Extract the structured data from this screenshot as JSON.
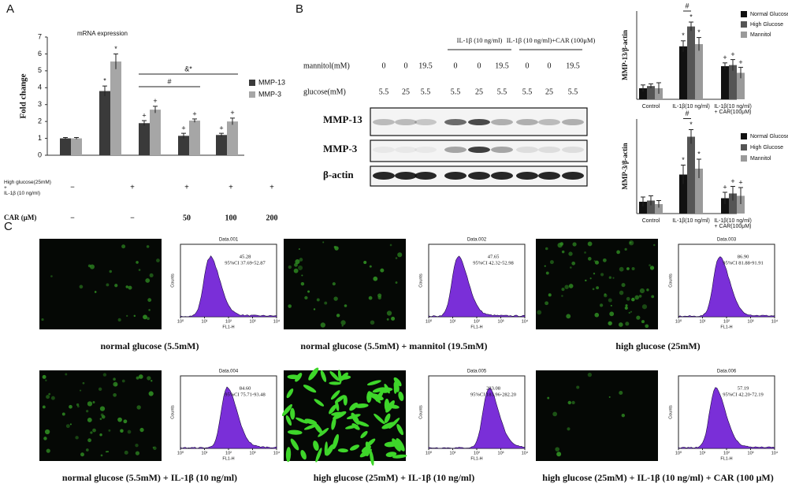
{
  "panel_labels": [
    "A",
    "B",
    "C"
  ],
  "chart_data": [
    {
      "type": "bar",
      "title": "mRNA expression",
      "ylabel": "Fold change",
      "ylim": [
        0,
        7
      ],
      "yticks": [
        0,
        1,
        2,
        3,
        4,
        5,
        6,
        7
      ],
      "series": [
        {
          "name": "MMP-13",
          "color": "#3a3a3a",
          "values": [
            1.0,
            3.8,
            1.9,
            1.15,
            1.2
          ],
          "errors": [
            0.05,
            0.3,
            0.15,
            0.15,
            0.1
          ]
        },
        {
          "name": "MMP-3",
          "color": "#a6a6a6",
          "values": [
            1.0,
            5.55,
            2.7,
            2.05,
            2.0
          ],
          "errors": [
            0.05,
            0.45,
            0.2,
            0.1,
            0.2
          ]
        }
      ],
      "annotations": [
        {
          "text": "*",
          "series": 0,
          "category": 1
        },
        {
          "text": "*",
          "series": 1,
          "category": 1
        },
        {
          "text": "+",
          "series": 0,
          "category": 2
        },
        {
          "text": "+",
          "series": 1,
          "category": 2
        },
        {
          "text": "+",
          "series": 0,
          "category": 3
        },
        {
          "text": "+",
          "series": 1,
          "category": 3
        },
        {
          "text": "+",
          "series": 0,
          "category": 4
        },
        {
          "text": "+",
          "series": 1,
          "category": 4
        }
      ],
      "brackets": [
        {
          "text": "#",
          "from": 2,
          "to": 3
        },
        {
          "text": "&*",
          "from": 2,
          "to": 4
        }
      ],
      "conditions": [
        {
          "label": "High glucose(25mM) + IL-1β (10 ng/ml)",
          "values": [
            "−",
            "+",
            "+",
            "+",
            "+"
          ]
        },
        {
          "label": "CAR (μM)",
          "values": [
            "−",
            "−",
            "50",
            "100",
            "200"
          ]
        }
      ]
    },
    {
      "type": "bar",
      "ylabel": "MMP-13/β-actin",
      "ylim": [
        0,
        8
      ],
      "categories": [
        "Control",
        "IL-1β(10 ng/ml)",
        "IL-1β(10 ng/ml) + CAR(100μM)"
      ],
      "series": [
        {
          "name": "Normal Glucose",
          "color": "#111111",
          "values": [
            1.0,
            4.8,
            3.0
          ],
          "errors": [
            0.3,
            0.5,
            0.3
          ]
        },
        {
          "name": "High Glucose",
          "color": "#555555",
          "values": [
            1.2,
            6.6,
            3.1
          ],
          "errors": [
            0.2,
            0.4,
            0.5
          ]
        },
        {
          "name": "Mannitol",
          "color": "#9a9a9a",
          "values": [
            1.0,
            5.0,
            2.4
          ],
          "errors": [
            0.5,
            0.6,
            0.5
          ]
        }
      ],
      "annotations": [
        {
          "text": "*",
          "series": 0,
          "category": 1
        },
        {
          "text": "*",
          "series": 1,
          "category": 1
        },
        {
          "text": "*",
          "series": 2,
          "category": 1
        },
        {
          "text": "+",
          "series": 0,
          "category": 2
        },
        {
          "text": "+",
          "series": 1,
          "category": 2
        },
        {
          "text": "+",
          "series": 2,
          "category": 2
        }
      ],
      "brackets": [
        {
          "text": "#",
          "category": 1,
          "from": 0,
          "to": 1
        }
      ]
    },
    {
      "type": "bar",
      "ylabel": "MMP-3/β-actin",
      "ylim": [
        0,
        8
      ],
      "categories": [
        "Control",
        "IL-1β(10 ng/ml)",
        "IL-1β(10 ng/ml) + CAR(100μM)"
      ],
      "series": [
        {
          "name": "Normal Glucose",
          "color": "#111111",
          "values": [
            1.0,
            3.3,
            1.3
          ],
          "errors": [
            0.4,
            0.8,
            0.5
          ]
        },
        {
          "name": "High Glucose",
          "color": "#555555",
          "values": [
            1.1,
            6.5,
            1.7
          ],
          "errors": [
            0.4,
            0.6,
            0.6
          ]
        },
        {
          "name": "Mannitol",
          "color": "#9a9a9a",
          "values": [
            0.8,
            3.8,
            1.5
          ],
          "errors": [
            0.3,
            0.8,
            0.7
          ]
        }
      ],
      "annotations": [
        {
          "text": "*",
          "series": 0,
          "category": 1
        },
        {
          "text": "*",
          "series": 1,
          "category": 1
        },
        {
          "text": "*",
          "series": 2,
          "category": 1
        },
        {
          "text": "+",
          "series": 0,
          "category": 2
        },
        {
          "text": "+",
          "series": 1,
          "category": 2
        },
        {
          "text": "+",
          "series": 2,
          "category": 2
        }
      ],
      "brackets": [
        {
          "text": "#",
          "category": 1,
          "from": 0,
          "to": 1
        }
      ]
    }
  ],
  "blot": {
    "groups": [
      {
        "label": "IL-1β (10 ng/ml)",
        "from": 3,
        "to": 5
      },
      {
        "label": "IL-1β (10 ng/ml)+CAR (100μM)",
        "from": 6,
        "to": 8
      }
    ],
    "rows": [
      {
        "label": "mannitol(mM)",
        "values": [
          0,
          0,
          19.5,
          0,
          0,
          19.5,
          0,
          0,
          19.5
        ]
      },
      {
        "label": "glucose(mM)",
        "values": [
          5.5,
          25,
          5.5,
          5.5,
          25,
          5.5,
          5.5,
          25,
          5.5
        ]
      }
    ],
    "bands": [
      "MMP-13",
      "MMP-3",
      "β-actin"
    ]
  },
  "flow_axes": {
    "ylabel": "Counts",
    "xlabel": "FL1-H",
    "xticks": [
      "10⁰",
      "10¹",
      "10²",
      "10³",
      "10⁴"
    ]
  },
  "flow": [
    {
      "title": "Data.001",
      "mean": "45.28",
      "ci": "95%CI 37.69-52.87",
      "caption": "normal glucose (5.5mM)"
    },
    {
      "title": "Data.002",
      "mean": "47.65",
      "ci": "95%CI 42.32-52.98",
      "caption": "normal glucose (5.5mM) + mannitol (19.5mM)"
    },
    {
      "title": "Data.003",
      "mean": "86.90",
      "ci": "95%CI 81.88-91.91",
      "caption": "high glucose (25mM)"
    },
    {
      "title": "Data.004",
      "mean": "84.60",
      "ci": "95%CI 75.71-93.48",
      "caption": "normal glucose (5.5mM) + IL-1β (10 ng/ml)"
    },
    {
      "title": "Data.005",
      "mean": "233.08",
      "ci": "95%CI 183.96-282.20",
      "caption": "high glucose (25mM) + IL-1β (10 ng/ml)"
    },
    {
      "title": "Data.006",
      "mean": "57.19",
      "ci": "95%CI 42.20-72.19",
      "caption": "high glucose (25mM) + IL-1β (10 ng/ml) + CAR (100 μM)"
    }
  ]
}
